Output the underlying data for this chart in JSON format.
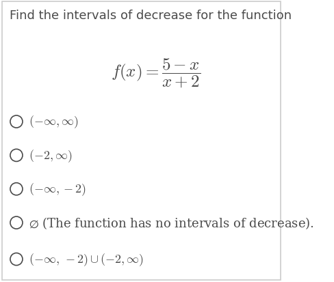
{
  "title": "Find the intervals of decrease for the function",
  "function_label": "f(x) = \\dfrac{5 - x}{x + 2}",
  "options": [
    "(-\\infty,\\infty)",
    "(-2,\\infty)",
    "(-\\infty,-2)",
    "\\varnothing \\text{ (The function has no intervals of decrease).}",
    "(-\\infty,\\, -2)\\cup(-2,\\infty)"
  ],
  "background_color": "#ffffff",
  "text_color": "#4a4a4a",
  "font_size_title": 13,
  "font_size_options": 13,
  "font_size_function": 16
}
